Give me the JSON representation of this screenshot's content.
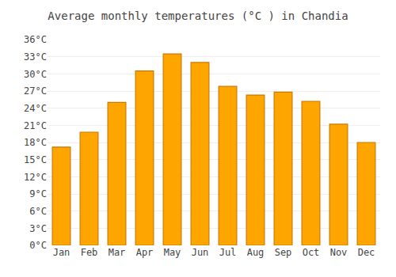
{
  "chart_data": {
    "type": "bar",
    "title": "Average monthly temperatures (°C ) in Chandia",
    "categories": [
      "Jan",
      "Feb",
      "Mar",
      "Apr",
      "May",
      "Jun",
      "Jul",
      "Aug",
      "Sep",
      "Oct",
      "Nov",
      "Dec"
    ],
    "values": [
      17.2,
      19.8,
      25.0,
      30.5,
      33.5,
      32.0,
      27.8,
      26.3,
      26.8,
      25.2,
      21.2,
      18.0
    ],
    "color": "#FFA500",
    "ylim": [
      0,
      36
    ],
    "yticks": [
      {
        "value": 0,
        "label": "0°C"
      },
      {
        "value": 3,
        "label": "3°C"
      },
      {
        "value": 6,
        "label": "6°C"
      },
      {
        "value": 9,
        "label": "9°C"
      },
      {
        "value": 12,
        "label": "12°C"
      },
      {
        "value": 15,
        "label": "15°C"
      },
      {
        "value": 18,
        "label": "18°C"
      },
      {
        "value": 21,
        "label": "21°C"
      },
      {
        "value": 24,
        "label": "24°C"
      },
      {
        "value": 27,
        "label": "27°C"
      },
      {
        "value": 30,
        "label": "30°C"
      },
      {
        "value": 33,
        "label": "33°C"
      },
      {
        "value": 36,
        "label": "36°C"
      }
    ],
    "grid": true
  }
}
